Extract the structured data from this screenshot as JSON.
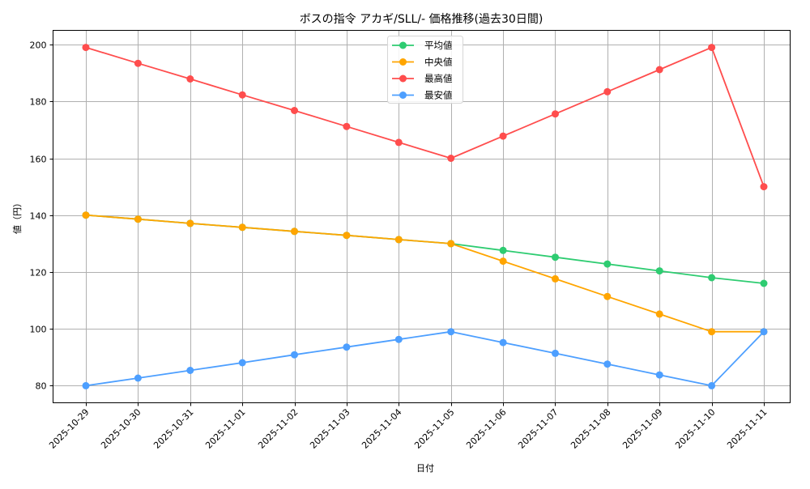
{
  "chart_data": {
    "type": "line",
    "title": "ボスの指令 アカギ/SLL/- 価格推移(過去30日間)",
    "xlabel": "日付",
    "ylabel": "値（円）",
    "categories": [
      "2025-10-29",
      "2025-10-30",
      "2025-10-31",
      "2025-11-01",
      "2025-11-02",
      "2025-11-03",
      "2025-11-04",
      "2025-11-05",
      "2025-11-06",
      "2025-11-07",
      "2025-11-08",
      "2025-11-09",
      "2025-11-10",
      "2025-11-11"
    ],
    "series": [
      {
        "name": "平均値",
        "color": "#2ecc71",
        "values": [
          140,
          138.6,
          137.1,
          135.7,
          134.3,
          132.9,
          131.4,
          130,
          127.6,
          125.2,
          122.8,
          120.4,
          118,
          116
        ]
      },
      {
        "name": "中央値",
        "color": "#ffa500",
        "values": [
          140,
          138.6,
          137.1,
          135.7,
          134.3,
          132.9,
          131.4,
          130,
          123.8,
          117.6,
          111.4,
          105.2,
          99,
          99
        ]
      },
      {
        "name": "最高値",
        "color": "#ff4d4d",
        "values": [
          199,
          193.4,
          187.9,
          182.3,
          176.8,
          171.2,
          165.6,
          160,
          167.8,
          175.6,
          183.4,
          191.2,
          199,
          150
        ]
      },
      {
        "name": "最安値",
        "color": "#4d9fff",
        "values": [
          80,
          82.7,
          85.4,
          88.1,
          90.9,
          93.6,
          96.3,
          99,
          95.2,
          91.4,
          87.6,
          83.8,
          80,
          99
        ]
      }
    ],
    "yticks": [
      80,
      100,
      120,
      140,
      160,
      180,
      200
    ],
    "ylim": [
      74,
      205
    ],
    "grid": true,
    "legend_position": "upper center",
    "xtick_rotation": 45
  }
}
